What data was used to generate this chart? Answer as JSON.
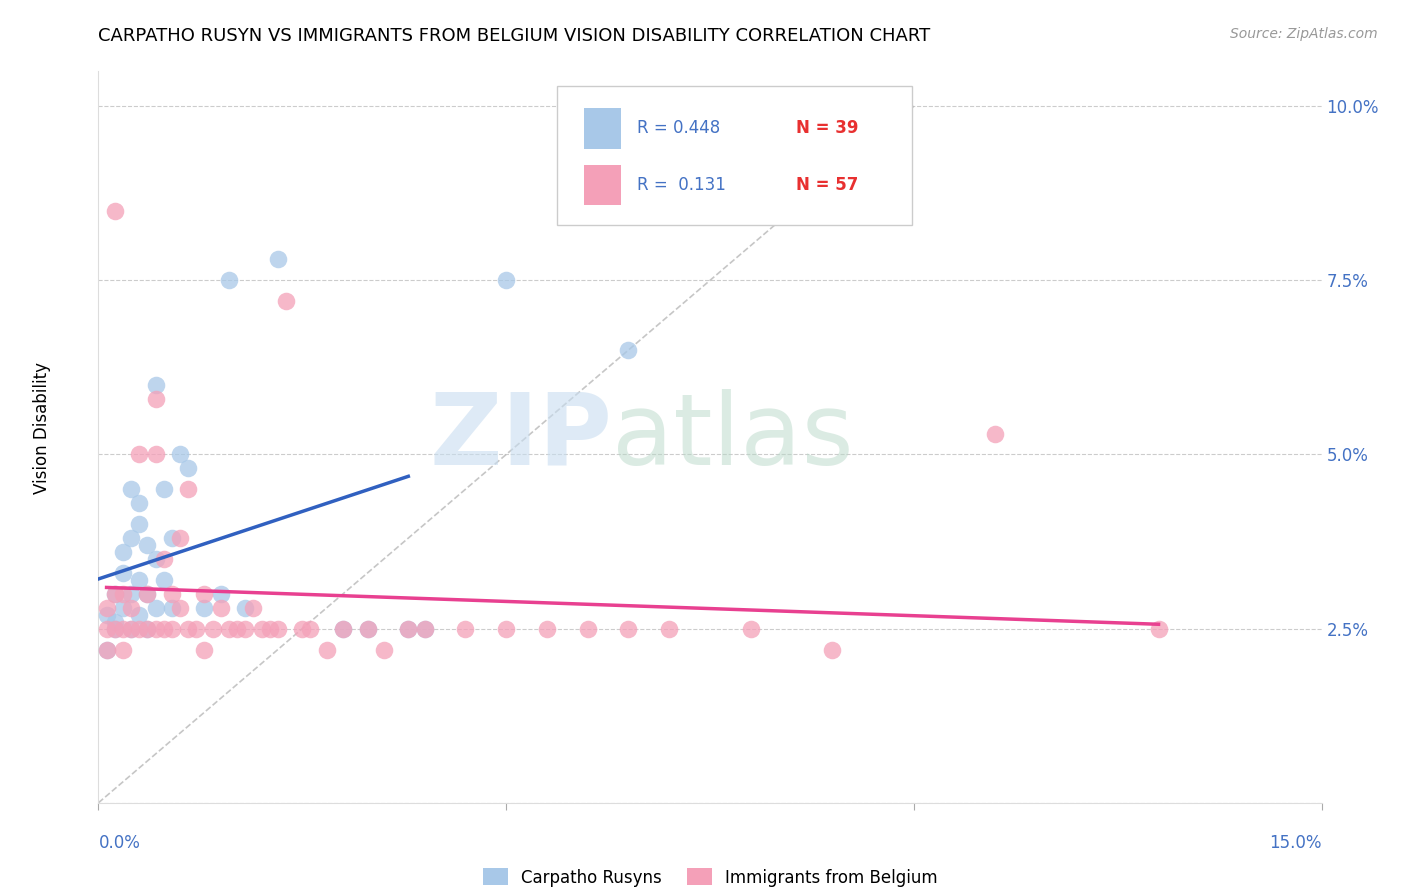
{
  "title": "CARPATHO RUSYN VS IMMIGRANTS FROM BELGIUM VISION DISABILITY CORRELATION CHART",
  "source": "Source: ZipAtlas.com",
  "ylabel": "Vision Disability",
  "y_ticks": [
    0.0,
    0.025,
    0.05,
    0.075,
    0.1
  ],
  "y_tick_labels": [
    "",
    "2.5%",
    "5.0%",
    "7.5%",
    "10.0%"
  ],
  "x_range": [
    0.0,
    0.15
  ],
  "y_range": [
    0.0,
    0.105
  ],
  "legend_r1": "R = 0.448",
  "legend_n1": "N = 39",
  "legend_r2": "R =  0.131",
  "legend_n2": "N = 57",
  "color_blue": "#a8c8e8",
  "color_pink": "#f4a0b8",
  "color_blue_line": "#3060c0",
  "color_pink_line": "#e84090",
  "color_gray_dashed": "#b8b8b8",
  "carpatho_x": [
    0.001,
    0.001,
    0.002,
    0.002,
    0.002,
    0.003,
    0.003,
    0.003,
    0.004,
    0.004,
    0.004,
    0.004,
    0.005,
    0.005,
    0.005,
    0.005,
    0.006,
    0.006,
    0.006,
    0.007,
    0.007,
    0.007,
    0.008,
    0.008,
    0.009,
    0.009,
    0.01,
    0.011,
    0.013,
    0.015,
    0.016,
    0.018,
    0.022,
    0.03,
    0.033,
    0.038,
    0.04,
    0.05,
    0.065
  ],
  "carpatho_y": [
    0.027,
    0.022,
    0.026,
    0.03,
    0.025,
    0.028,
    0.033,
    0.036,
    0.025,
    0.03,
    0.038,
    0.045,
    0.027,
    0.032,
    0.04,
    0.043,
    0.025,
    0.03,
    0.037,
    0.028,
    0.035,
    0.06,
    0.032,
    0.045,
    0.028,
    0.038,
    0.05,
    0.048,
    0.028,
    0.03,
    0.075,
    0.028,
    0.078,
    0.025,
    0.025,
    0.025,
    0.025,
    0.075,
    0.065
  ],
  "belgium_x": [
    0.001,
    0.001,
    0.001,
    0.002,
    0.002,
    0.002,
    0.003,
    0.003,
    0.003,
    0.004,
    0.004,
    0.005,
    0.005,
    0.006,
    0.006,
    0.007,
    0.007,
    0.007,
    0.008,
    0.008,
    0.009,
    0.009,
    0.01,
    0.01,
    0.011,
    0.011,
    0.012,
    0.013,
    0.013,
    0.014,
    0.015,
    0.016,
    0.017,
    0.018,
    0.019,
    0.02,
    0.021,
    0.022,
    0.023,
    0.025,
    0.026,
    0.028,
    0.03,
    0.033,
    0.035,
    0.038,
    0.04,
    0.045,
    0.05,
    0.055,
    0.06,
    0.065,
    0.07,
    0.08,
    0.09,
    0.11,
    0.13
  ],
  "belgium_y": [
    0.025,
    0.022,
    0.028,
    0.025,
    0.03,
    0.085,
    0.025,
    0.022,
    0.03,
    0.025,
    0.028,
    0.025,
    0.05,
    0.025,
    0.03,
    0.025,
    0.05,
    0.058,
    0.025,
    0.035,
    0.025,
    0.03,
    0.028,
    0.038,
    0.025,
    0.045,
    0.025,
    0.022,
    0.03,
    0.025,
    0.028,
    0.025,
    0.025,
    0.025,
    0.028,
    0.025,
    0.025,
    0.025,
    0.072,
    0.025,
    0.025,
    0.022,
    0.025,
    0.025,
    0.022,
    0.025,
    0.025,
    0.025,
    0.025,
    0.025,
    0.025,
    0.025,
    0.025,
    0.025,
    0.022,
    0.053,
    0.025
  ]
}
